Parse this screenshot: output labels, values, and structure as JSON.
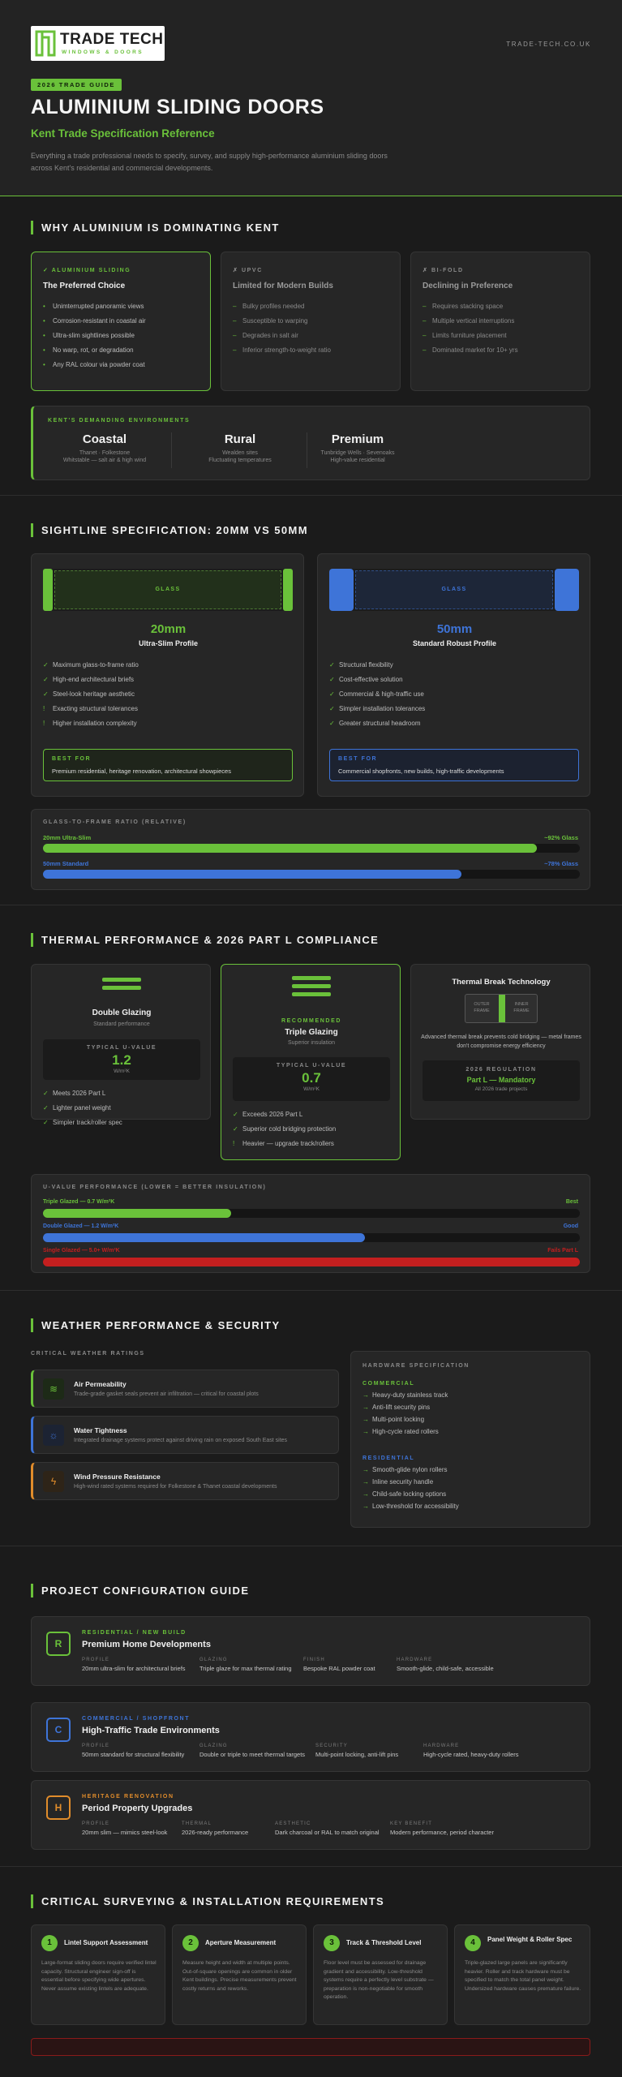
{
  "header": {
    "logo_title": "TRADE TECH",
    "logo_sub": "WINDOWS & DOORS",
    "site": "TRADE-TECH.CO.UK",
    "badge": "2026 TRADE GUIDE",
    "title": "ALUMINIUM SLIDING DOORS",
    "subtitle": "Kent Trade Specification Reference",
    "intro": "Everything a trade professional needs to specify, survey, and supply high-performance aluminium sliding doors across Kent's residential and commercial developments."
  },
  "why": {
    "title": "WHY ALUMINIUM IS DOMINATING KENT",
    "cards": [
      {
        "tag": "✓ ALUMINIUM SLIDING",
        "heading": "The Preferred Choice",
        "items": [
          "Unimterrupted panoramic views",
          "Corrosion-resistant in coastal air",
          "Ultra-slim sightlines possible",
          "No warp, rot, or degradation",
          "Any RAL colour via powder coat"
        ]
      },
      {
        "tag": "✗ UPVC",
        "heading": "Limited for Modern Builds",
        "items": [
          "Bulky profiles needed",
          "Susceptible to warping",
          "Degrades in salt air",
          "Inferior strength-to-weight ratio"
        ]
      },
      {
        "tag": "✗ BI-FOLD",
        "heading": "Declining in Preference",
        "items": [
          "Requires stacking space",
          "Multiple vertical interruptions",
          "Limits furniture placement",
          "Dominated market for 10+ yrs"
        ]
      }
    ],
    "env_tag": "KENT'S DEMANDING ENVIRONMENTS",
    "envs": [
      {
        "name": "Coastal",
        "line1": "Thanet · Folkestone",
        "line2": "Whitstable — salt air & high wind"
      },
      {
        "name": "Rural",
        "line1": "Wealden sites",
        "line2": "Fluctuating temperatures"
      },
      {
        "name": "Premium",
        "line1": "Tunbridge Wells · Sevenoaks",
        "line2": "High-value residential"
      }
    ]
  },
  "sightline": {
    "title": "SIGHTLINE SPECIFICATION: 20MM VS 50MM",
    "slim": {
      "glass": "GLASS",
      "size": "20mm",
      "name": "Ultra-Slim Profile",
      "pros": [
        "Maximum glass-to-frame ratio",
        "High-end architectural briefs",
        "Steel-look heritage aesthetic"
      ],
      "cons": [
        "Exacting structural tolerances",
        "Higher installation complexity"
      ],
      "best_tag": "BEST FOR",
      "best": "Premium residential, heritage renovation, architectural showpieces"
    },
    "std": {
      "glass": "GLASS",
      "size": "50mm",
      "name": "Standard Robust Profile",
      "pros": [
        "Structural flexibility",
        "Cost-effective solution",
        "Commercial & high-traffic use",
        "Simpler installation tolerances",
        "Greater structural headroom"
      ],
      "best_tag": "BEST FOR",
      "best": "Commercial shopfronts, new builds, high-traffic developments"
    },
    "ratio_tag": "GLASS-TO-FRAME RATIO (RELATIVE)",
    "ratios": [
      {
        "label": "20mm Ultra-Slim",
        "value": "~92% Glass",
        "pct": 0.92,
        "color": "#6ac13a"
      },
      {
        "label": "50mm Standard",
        "value": "~78% Glass",
        "pct": 0.78,
        "color": "#3e74d8"
      }
    ]
  },
  "thermal": {
    "title": "THERMAL PERFORMANCE & 2026 PART L COMPLIANCE",
    "double": {
      "name": "Double Glazing",
      "sub": "Standard performance",
      "u_tag": "TYPICAL U-VALUE",
      "u": "1.2",
      "unit": "W/m²K",
      "items": [
        "Meets 2026 Part L",
        "Lighter panel weight",
        "Simpler track/roller spec"
      ]
    },
    "triple": {
      "rec": "RECOMMENDED",
      "name": "Triple Glazing",
      "sub": "Superior insulation",
      "u_tag": "TYPICAL U-VALUE",
      "u": "0.7",
      "unit": "W/m²K",
      "items": [
        "Exceeds 2026 Part L",
        "Superior cold bridging protection"
      ],
      "warn": "Heavier — upgrade track/rollers"
    },
    "tbt": {
      "name": "Thermal Break Technology",
      "outer": "OUTER FRAME",
      "inner": "INNER FRAME",
      "desc": "Advanced thermal break prevents cold bridging — metal frames don't compromise energy efficiency",
      "reg_tag": "2026 REGULATION",
      "reg": "Part L — Mandatory",
      "reg_sub": "All 2026 trade projects"
    },
    "u_tag": "U-VALUE PERFORMANCE (LOWER = BETTER INSULATION)",
    "u_bars": [
      {
        "label": "Triple Glazed — 0.7 W/m²K",
        "rating": "Best",
        "pct": 0.35,
        "color": "#6ac13a"
      },
      {
        "label": "Double Glazed — 1.2 W/m²K",
        "rating": "Good",
        "pct": 0.6,
        "color": "#3e74d8"
      },
      {
        "label": "Single Glazed — 5.0+ W/m²K",
        "rating": "Fails Part L",
        "pct": 1.0,
        "color": "#c41f1f"
      }
    ]
  },
  "weather": {
    "title": "WEATHER PERFORMANCE & SECURITY",
    "tag": "CRITICAL WEATHER RATINGS",
    "ratings": [
      {
        "name": "Air Permeability",
        "desc": "Trade-grade gasket seals prevent air infiltration — critical for coastal plots"
      },
      {
        "name": "Water Tightness",
        "desc": "Integrated drainage systems protect against driving rain on exposed South East sites"
      },
      {
        "name": "Wind Pressure Resistance",
        "desc": "High-wind rated systems required for Folkestone & Thanet coastal developments"
      }
    ],
    "hw_tag": "HARDWARE SPECIFICATION",
    "com_tag": "COMMERCIAL",
    "com": [
      "Heavy-duty stainless track",
      "Anti-lift security pins",
      "Multi-point locking",
      "High-cycle rated rollers"
    ],
    "res_tag": "RESIDENTIAL",
    "res": [
      "Smooth-glide nylon rollers",
      "Inline security handle",
      "Child-safe locking options",
      "Low-threshold for accessibility"
    ]
  },
  "config": {
    "title": "PROJECT CONFIGURATION GUIDE",
    "rows": [
      {
        "letter": "R",
        "tag": "RESIDENTIAL / NEW BUILD",
        "name": "Premium Home Developments",
        "keys": [
          "PROFILE",
          "GLAZING",
          "FINISH",
          "HARDWARE"
        ],
        "vals": [
          "20mm ultra-slim for architectural briefs",
          "Triple glaze for max thermal rating",
          "Bespoke RAL powder coat",
          "Smooth-glide, child-safe, accessible"
        ]
      },
      {
        "letter": "C",
        "tag": "COMMERCIAL / SHOPFRONT",
        "name": "High-Traffic Trade Environments",
        "keys": [
          "PROFILE",
          "GLAZING",
          "SECURITY",
          "HARDWARE"
        ],
        "vals": [
          "50mm standard for structural flexibility",
          "Double or triple to meet thermal targets",
          "Multi-point locking, anti-lift pins",
          "High-cycle rated, heavy-duty rollers"
        ]
      },
      {
        "letter": "H",
        "tag": "HERITAGE RENOVATION",
        "name": "Period Property Upgrades",
        "keys": [
          "PROFILE",
          "THERMAL",
          "AESTHETIC",
          "KEY BENEFIT"
        ],
        "vals": [
          "20mm slim — mimics steel-look",
          "2026-ready performance",
          "Dark charcoal or RAL to match original",
          "Modern performance, period character"
        ]
      }
    ]
  },
  "survey": {
    "title": "CRITICAL SURVEYING & INSTALLATION REQUIREMENTS",
    "steps": [
      {
        "n": "1",
        "name": "Lintel Support Assessment",
        "desc": "Large-format sliding doors require verified lintel capacity. Structural engineer sign-off is essential before specifying wide apertures. Never assume existing lintels are adequate."
      },
      {
        "n": "2",
        "name": "Aperture Measurement",
        "desc": "Measure height and width at multiple points. Out-of-square openings are common in older Kent buildings. Precise measurements prevent costly returns and reworks."
      },
      {
        "n": "3",
        "name": "Track & Threshold Level",
        "desc": "Floor level must be assessed for drainage gradient and accessibility. Low-threshold systems require a perfectly level substrate — preparation is non-negotiable for smooth operation."
      },
      {
        "n": "4",
        "name": "Panel Weight & Roller Spec",
        "desc": "Triple-glazed large panels are significantly heavier. Roller and track hardware must be specified to match the total panel weight. Undersized hardware causes premature failure."
      }
    ]
  },
  "colors": {
    "accent": "#6ac13a",
    "blue": "#3e74d8",
    "orange": "#e08c2b",
    "red": "#c41f1f",
    "bg": "#1b1b1b"
  }
}
